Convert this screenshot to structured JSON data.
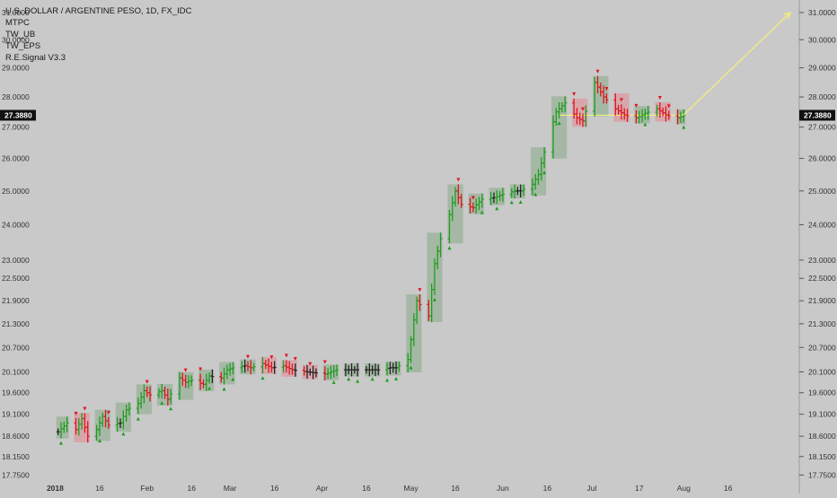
{
  "header": {
    "title": "U.S. DOLLAR / ARGENTINE PESO, 1D, FX_IDC",
    "indicators": [
      "MTPC",
      "TW_UB",
      "TW_EPS",
      "R.E.Signal V3.3"
    ]
  },
  "colors": {
    "background": "#c9c9c9",
    "up": "#1f9d1f",
    "down": "#e0141e",
    "neutral": "#222222",
    "box_green": "#9fb59f",
    "box_red": "#d9a0a6",
    "arrow": "#f3f07a",
    "badge": "#111111"
  },
  "last_price_label": "27.3880",
  "chart_data": {
    "type": "ohlc",
    "title": "U.S. DOLLAR / ARGENTINE PESO, 1D, FX_IDC",
    "y_ticks": [
      "17.7500",
      "18.1500",
      "18.6000",
      "19.1000",
      "19.6000",
      "20.1000",
      "20.7000",
      "21.3000",
      "21.9000",
      "22.5000",
      "23.0000",
      "24.0000",
      "25.0000",
      "26.0000",
      "27.0000",
      "28.0000",
      "29.0000",
      "30.0000",
      "31.0000"
    ],
    "x_ticks": [
      "2018",
      "16",
      "Feb",
      "16",
      "Mar",
      "16",
      "Apr",
      "16",
      "May",
      "16",
      "Jun",
      "16",
      "Jul",
      "17",
      "Aug",
      "16"
    ],
    "x_tick_values": [
      "2018-01-01",
      "2018-01-16",
      "2018-02-01",
      "2018-02-16",
      "2018-03-01",
      "2018-03-16",
      "2018-04-01",
      "2018-04-16",
      "2018-05-01",
      "2018-05-16",
      "2018-06-01",
      "2018-06-16",
      "2018-07-01",
      "2018-07-17",
      "2018-08-01",
      "2018-08-16"
    ],
    "y_range": [
      17.7,
      31.2
    ],
    "y_scale": "log",
    "last_value": 27.388,
    "series": [
      {
        "name": "USD/ARS",
        "points": [
          [
            "2018-01-02",
            18.7
          ],
          [
            "2018-01-05",
            18.9
          ],
          [
            "2018-01-08",
            18.75
          ],
          [
            "2018-01-10",
            19.0
          ],
          [
            "2018-01-12",
            18.6
          ],
          [
            "2018-01-15",
            18.75
          ],
          [
            "2018-01-17",
            19.05
          ],
          [
            "2018-01-19",
            18.85
          ],
          [
            "2018-01-23",
            18.9
          ],
          [
            "2018-01-25",
            19.2
          ],
          [
            "2018-01-29",
            19.35
          ],
          [
            "2018-01-31",
            19.65
          ],
          [
            "2018-02-02",
            19.55
          ],
          [
            "2018-02-06",
            19.65
          ],
          [
            "2018-02-08",
            19.45
          ],
          [
            "2018-02-12",
            19.95
          ],
          [
            "2018-02-14",
            19.85
          ],
          [
            "2018-02-16",
            19.9
          ],
          [
            "2018-02-20",
            19.8
          ],
          [
            "2018-02-22",
            20.0
          ],
          [
            "2018-02-26",
            19.95
          ],
          [
            "2018-02-28",
            20.15
          ],
          [
            "2018-03-02",
            20.2
          ],
          [
            "2018-03-06",
            20.25
          ],
          [
            "2018-03-08",
            20.2
          ],
          [
            "2018-03-12",
            20.3
          ],
          [
            "2018-03-15",
            20.2
          ],
          [
            "2018-03-19",
            20.25
          ],
          [
            "2018-03-22",
            20.15
          ],
          [
            "2018-03-27",
            20.1
          ],
          [
            "2018-04-02",
            20.05
          ],
          [
            "2018-04-06",
            20.15
          ],
          [
            "2018-04-10",
            20.15
          ],
          [
            "2018-04-13",
            20.15
          ],
          [
            "2018-04-17",
            20.15
          ],
          [
            "2018-04-20",
            20.15
          ],
          [
            "2018-04-24",
            20.2
          ],
          [
            "2018-04-26",
            20.2
          ],
          [
            "2018-04-30",
            20.4
          ],
          [
            "2018-05-03",
            21.9
          ],
          [
            "2018-05-07",
            21.5
          ],
          [
            "2018-05-09",
            22.9
          ],
          [
            "2018-05-11",
            23.6
          ],
          [
            "2018-05-14",
            24.3
          ],
          [
            "2018-05-16",
            25.0
          ],
          [
            "2018-05-18",
            24.6
          ],
          [
            "2018-05-22",
            24.5
          ],
          [
            "2018-05-25",
            24.75
          ],
          [
            "2018-05-29",
            24.8
          ],
          [
            "2018-06-01",
            24.9
          ],
          [
            "2018-06-05",
            25.0
          ],
          [
            "2018-06-07",
            25.0
          ],
          [
            "2018-06-11",
            25.2
          ],
          [
            "2018-06-13",
            25.5
          ],
          [
            "2018-06-15",
            26.2
          ],
          [
            "2018-06-19",
            27.5
          ],
          [
            "2018-06-22",
            27.8
          ],
          [
            "2018-06-26",
            27.3
          ],
          [
            "2018-06-28",
            27.2
          ],
          [
            "2018-07-02",
            28.5
          ],
          [
            "2018-07-05",
            28.0
          ],
          [
            "2018-07-09",
            27.6
          ],
          [
            "2018-07-12",
            27.4
          ],
          [
            "2018-07-16",
            27.3
          ],
          [
            "2018-07-19",
            27.45
          ],
          [
            "2018-07-23",
            27.6
          ],
          [
            "2018-07-26",
            27.4
          ],
          [
            "2018-07-30",
            27.3
          ],
          [
            "2018-08-01",
            27.388
          ]
        ]
      }
    ],
    "annotations": [
      {
        "type": "arrow",
        "from": [
          "2018-08-01",
          27.4
        ],
        "to": [
          "2018-09-06",
          31.0
        ]
      },
      {
        "type": "hline",
        "value": 27.388,
        "from": "2018-06-20",
        "to": "2018-08-01"
      }
    ]
  }
}
